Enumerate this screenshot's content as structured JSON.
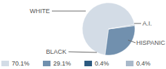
{
  "chart_data": {
    "type": "pie",
    "categories": [
      "WHITE",
      "HISPANIC",
      "A.I.",
      "BLACK"
    ],
    "values": [
      70.1,
      29.1,
      0.4,
      0.4
    ],
    "value_labels": [
      "70.1%",
      "29.1%",
      "0.4%",
      "0.4%"
    ],
    "colors": [
      "#d3dce6",
      "#7190ae",
      "#2d5a80",
      "#a9b9ca"
    ]
  }
}
